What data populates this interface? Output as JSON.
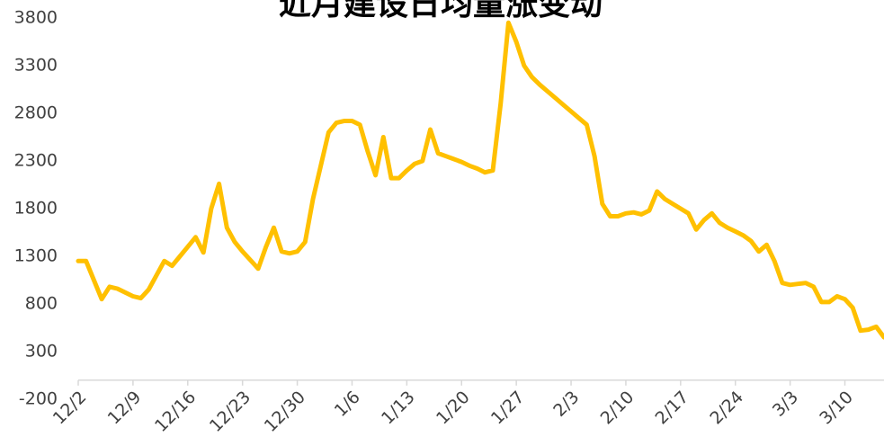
{
  "chart_data": {
    "type": "line",
    "title": "近月建设日均量涨变动",
    "categories": [
      "12/2",
      null,
      null,
      null,
      null,
      null,
      null,
      "12/9",
      null,
      null,
      null,
      null,
      null,
      null,
      "12/16",
      null,
      null,
      null,
      null,
      null,
      null,
      "12/23",
      null,
      null,
      null,
      null,
      null,
      null,
      "12/30",
      null,
      null,
      null,
      null,
      null,
      null,
      "1/6",
      null,
      null,
      null,
      null,
      null,
      null,
      "1/13",
      null,
      null,
      null,
      null,
      null,
      null,
      "1/20",
      null,
      null,
      null,
      null,
      null,
      null,
      "1/27",
      null,
      null,
      null,
      null,
      null,
      null,
      "2/3",
      null,
      null,
      null,
      null,
      null,
      null,
      "2/10",
      null,
      null,
      null,
      null,
      null,
      null,
      "2/17",
      null,
      null,
      null,
      null,
      null,
      null,
      "2/24",
      null,
      null,
      null,
      null,
      null,
      null,
      "3/3",
      null,
      null,
      null,
      null,
      null,
      null,
      "3/10",
      null,
      null,
      null,
      null,
      null
    ],
    "values": [
      1250,
      1250,
      1050,
      850,
      980,
      960,
      920,
      880,
      860,
      950,
      1100,
      1250,
      1200,
      1300,
      1400,
      1500,
      1340,
      1800,
      2060,
      1600,
      1450,
      1350,
      1260,
      1170,
      1400,
      1600,
      1350,
      1330,
      1350,
      1450,
      1900,
      2250,
      2600,
      2700,
      2720,
      2720,
      2680,
      2400,
      2150,
      2550,
      2120,
      2120,
      2200,
      2270,
      2300,
      2630,
      2380,
      2350,
      2320,
      2290,
      2250,
      2220,
      2180,
      2200,
      2900,
      3750,
      3550,
      3300,
      3180,
      3100,
      3030,
      2960,
      2890,
      2820,
      2750,
      2680,
      2350,
      1850,
      1720,
      1720,
      1750,
      1760,
      1740,
      1780,
      1980,
      1900,
      1850,
      1800,
      1750,
      1580,
      1680,
      1750,
      1650,
      1600,
      1560,
      1520,
      1460,
      1350,
      1420,
      1250,
      1020,
      1000,
      1010,
      1020,
      980,
      820,
      820,
      880,
      850,
      760,
      520,
      530,
      560,
      450
    ],
    "color": "#ffc000",
    "ylim": [
      -200,
      3800
    ],
    "yticks": [
      -200,
      300,
      800,
      1300,
      1800,
      2300,
      2800,
      3300,
      3800
    ],
    "grid": false
  }
}
